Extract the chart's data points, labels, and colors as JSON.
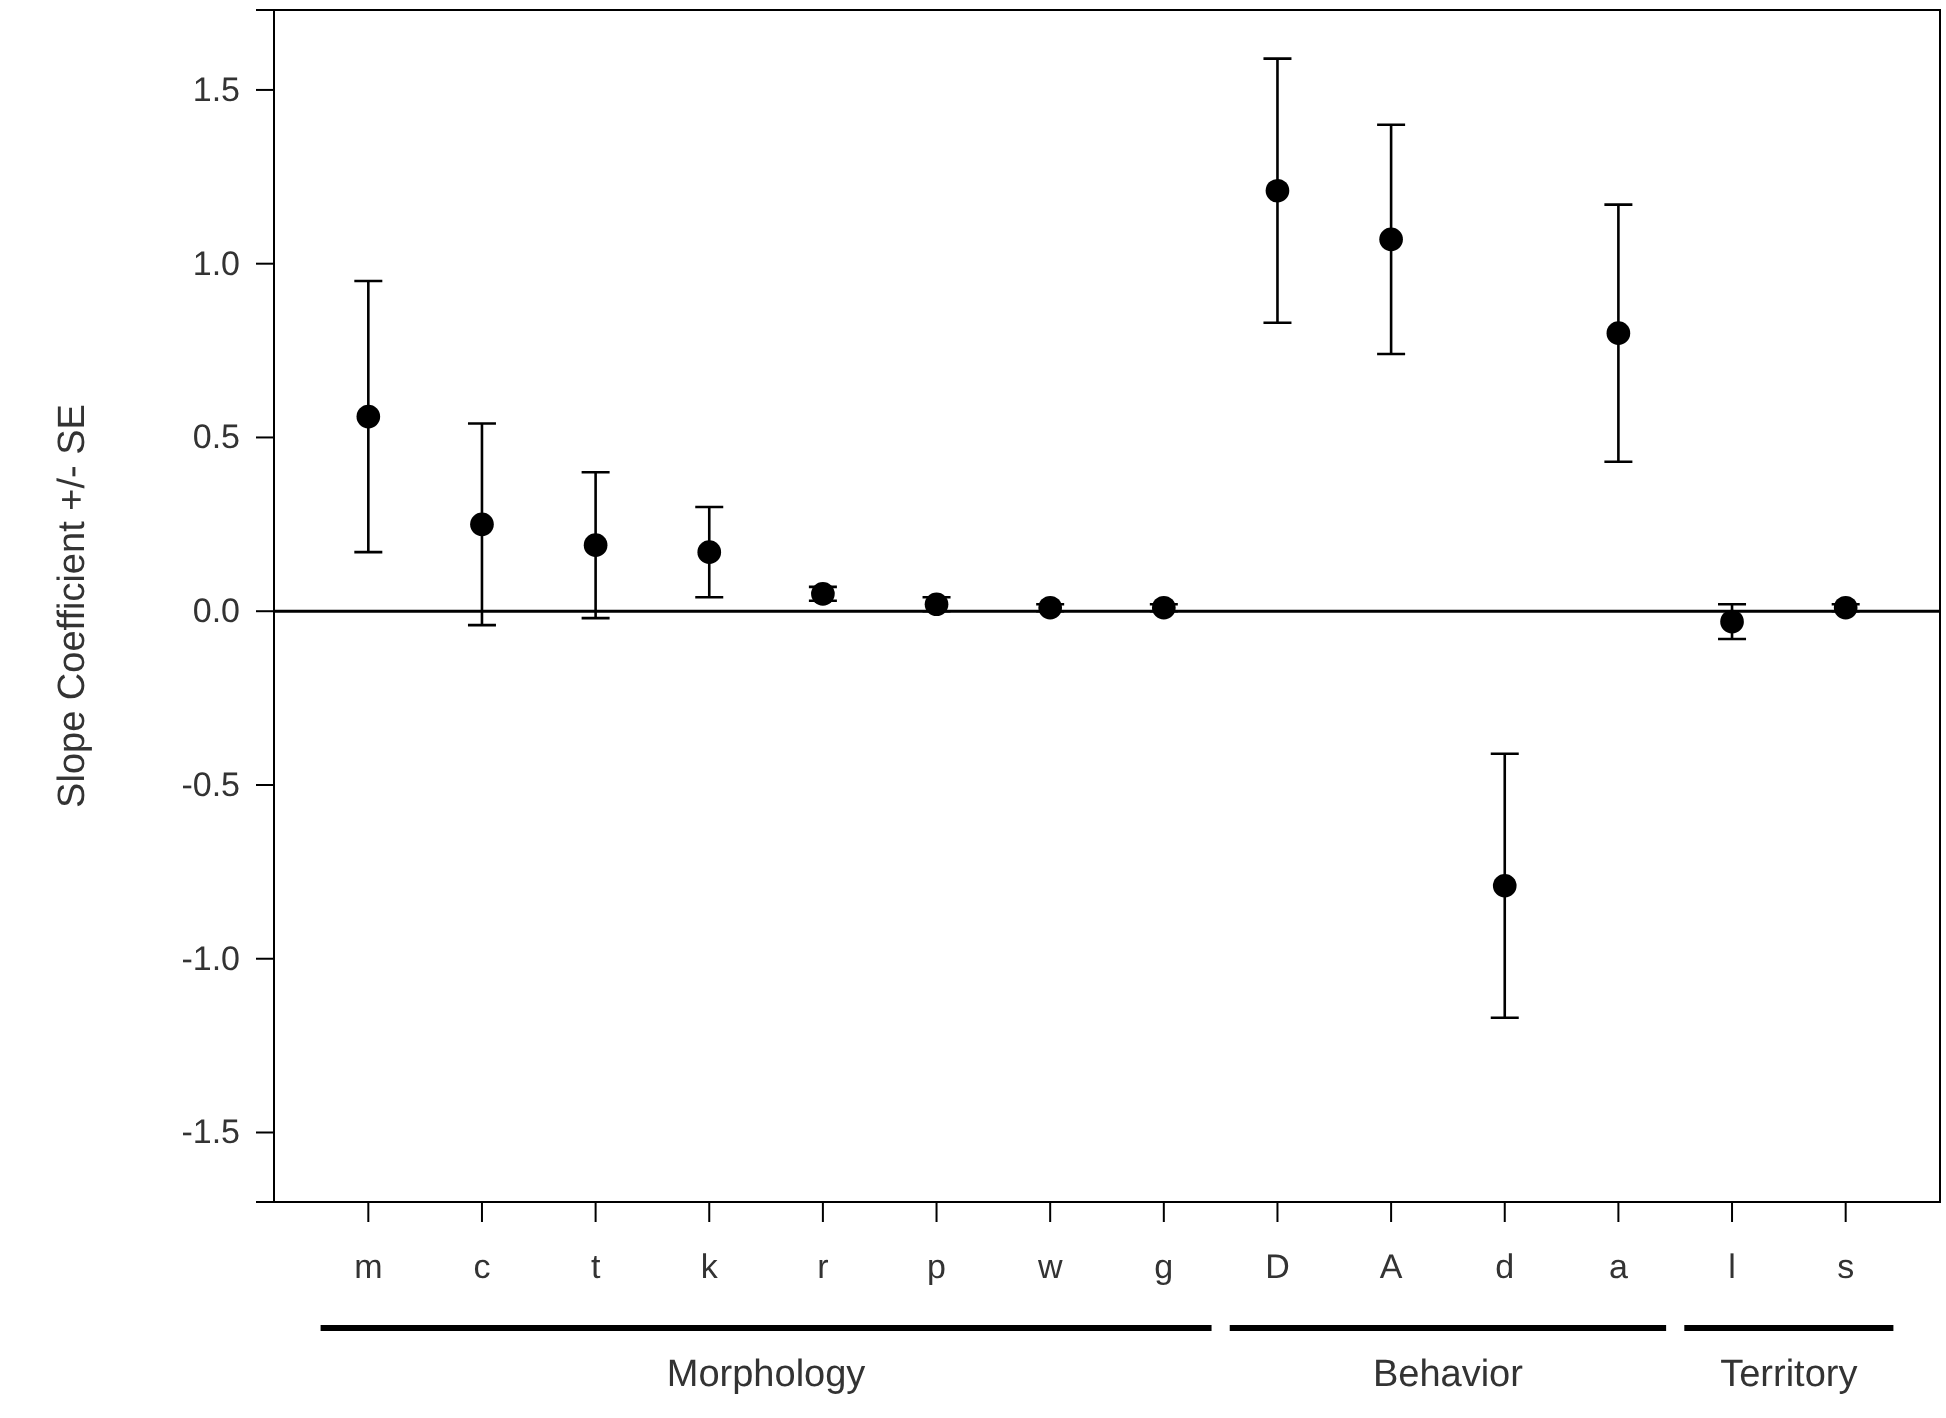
{
  "chart_data": {
    "type": "scatter",
    "ylabel": "Slope Coefficient +/- SE",
    "categories": [
      "m",
      "c",
      "t",
      "k",
      "r",
      "p",
      "w",
      "g",
      "D",
      "A",
      "d",
      "a",
      "l",
      "s"
    ],
    "values": [
      0.56,
      0.25,
      0.19,
      0.17,
      0.05,
      0.02,
      0.01,
      0.01,
      1.21,
      1.07,
      -0.79,
      0.8,
      -0.03,
      0.01
    ],
    "errors": [
      0.39,
      0.29,
      0.21,
      0.13,
      0.02,
      0.02,
      0.01,
      0.01,
      0.38,
      0.33,
      0.38,
      0.37,
      0.05,
      0.01
    ],
    "color": "#000000",
    "marker": "circle",
    "ylim": [
      -1.7,
      1.73
    ],
    "yticks": [
      {
        "value": -1.5,
        "label": "-1.5"
      },
      {
        "value": -1,
        "label": "-1.0"
      },
      {
        "value": -0.5,
        "label": "-0.5"
      },
      {
        "value": 0,
        "label": "0.0"
      },
      {
        "value": 0.5,
        "label": "0.5"
      },
      {
        "value": 1,
        "label": "1.0"
      },
      {
        "value": 1.5,
        "label": "1.5"
      }
    ],
    "ref_lines": [
      {
        "axis": "y",
        "value": 0,
        "color": "#000000"
      }
    ],
    "annotations": [
      "Morphology",
      "Behavior",
      "Territory"
    ],
    "grid": false
  }
}
